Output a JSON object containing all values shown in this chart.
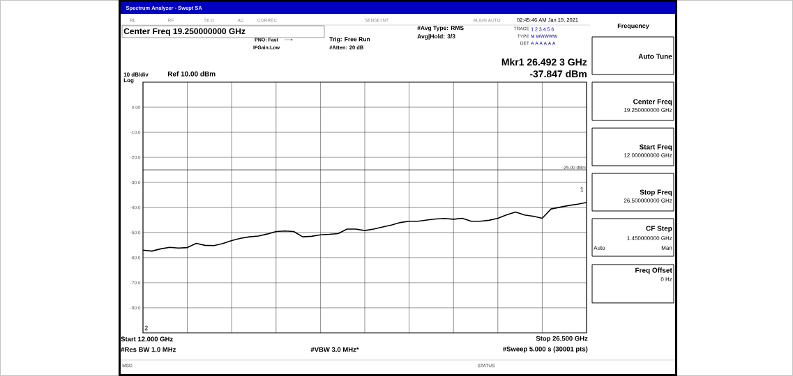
{
  "chart_data": {
    "type": "line",
    "title": "Spectrum Analyzer - Swept SA",
    "categories": [
      null,
      null,
      null,
      null,
      null,
      null,
      null,
      null,
      null,
      null,
      null,
      null,
      null,
      null,
      null,
      null,
      null,
      null,
      null,
      null,
      null,
      null,
      null,
      null,
      null,
      null,
      null,
      null,
      null,
      null,
      null,
      null,
      null,
      null,
      null,
      null,
      null,
      null,
      null,
      null,
      null,
      null,
      null,
      null,
      null,
      null,
      null,
      null,
      null,
      null,
      null
    ],
    "ylim": [
      -90,
      10
    ],
    "yticks": [
      {
        "value": 0,
        "label": "0.00"
      },
      {
        "value": -10,
        "label": "-10.0"
      },
      {
        "value": -20,
        "label": "-20.0"
      },
      {
        "value": -30,
        "label": "-30.0"
      },
      {
        "value": -40,
        "label": "-40.0"
      },
      {
        "value": -50,
        "label": "-50.0"
      },
      {
        "value": -60,
        "label": "-60.0"
      },
      {
        "value": -70,
        "label": "-70.0"
      },
      {
        "value": -80,
        "label": "-80.0"
      }
    ],
    "grid": true,
    "tick_labels": "y",
    "ref_lines": [
      {
        "axis": "y",
        "value": -25,
        "label": "-25.00 dBm",
        "color": "#000000"
      }
    ],
    "series": [
      {
        "color": "#000000",
        "line_style": "solid",
        "marker": "none",
        "values": [
          -57.0,
          -57.4,
          -56.5,
          -55.9,
          -56.2,
          -56.0,
          -54.3,
          -55.1,
          -55.2,
          -54.4,
          -53.2,
          -52.3,
          -51.7,
          -51.4,
          -50.6,
          -49.6,
          -49.4,
          -49.6,
          -51.7,
          -51.5,
          -50.9,
          -50.7,
          -50.4,
          -48.6,
          -48.6,
          -49.2,
          -48.6,
          -47.8,
          -47.0,
          -46.0,
          -45.5,
          -45.5,
          -45.0,
          -44.6,
          -44.4,
          -44.7,
          -44.3,
          -45.5,
          -45.5,
          -45.1,
          -44.3,
          -42.9,
          -41.8,
          -43.0,
          -43.5,
          -44.3,
          -40.6,
          -39.9,
          -39.2,
          -38.7,
          -38.0
        ]
      }
    ],
    "annotations": [
      "RL",
      "RF",
      "50 Ω",
      "AC",
      "CORREC",
      "SENSE:INT",
      "ALIGN AUTO",
      "02:45:46 AM Jan 19, 2021",
      "Center Freq 19.250000000 GHz",
      "PNO: Fast",
      "IFGain:Low",
      "Trig: Free Run",
      "#Atten: 20 dB",
      "#Avg Type: RMS",
      "Avg|Hold: 3/3",
      "TRACE",
      "1 2 3 4 5 6",
      "TYPE",
      "M WWWWW",
      "DET",
      "A A A A A A",
      "Mkr1 26.492 3 GHz",
      "-37.847 dBm",
      "10 dB/div",
      "Log",
      "Ref 10.00 dBm",
      "Start 12.000 GHz",
      "Stop 26.500 GHz",
      "#Res BW 1.0 MHz",
      "#VBW 3.0 MHz*",
      "#Sweep  5.000 s (30001 pts)",
      "MSG",
      "STATUS",
      "Frequency",
      "Auto Tune",
      "Center Freq",
      "19.250000000 GHz",
      "Start Freq",
      "12.000000000 GHz",
      "Stop Freq",
      "26.500000000 GHz",
      "CF Step",
      "1.450000000 GHz",
      "Auto",
      "Man",
      "Freq Offset",
      "0 Hz",
      "2",
      "1"
    ]
  }
}
